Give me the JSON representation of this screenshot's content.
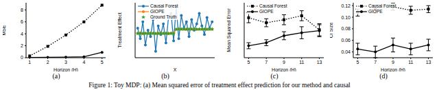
{
  "caption": "Figure 1: Toy MDP: (a) Mean squared error of treatment effect prediction for our method and causal",
  "chart_data": [
    {
      "type": "line",
      "title": "(a)",
      "x_label": "Horizon (H)",
      "y_label": "MSE",
      "x": [
        1,
        2,
        3,
        4,
        5
      ],
      "xlim": [
        0.8,
        5.2
      ],
      "xticks": [
        1,
        2,
        3,
        4,
        5
      ],
      "ylim": [
        0,
        9.2
      ],
      "yticks": [
        0,
        2,
        4,
        6,
        8
      ],
      "series": [
        {
          "name": "Causal Forest",
          "color": "#000000",
          "marker": "square",
          "line_style": "dotted",
          "values": [
            0.3,
            1.9,
            3.8,
            6.0,
            8.8
          ]
        },
        {
          "name": "GIOPE",
          "color": "#000000",
          "marker": "circle",
          "line_style": "solid",
          "values": [
            0.05,
            0.07,
            0.1,
            0.15,
            0.9
          ]
        }
      ]
    },
    {
      "type": "line",
      "title": "(b)",
      "x_label": "X",
      "y_label": "Treatment Effect",
      "tick_labels": false,
      "legend": "upper left",
      "x": [
        0,
        1,
        2,
        3,
        4,
        5,
        6,
        7,
        8,
        9,
        10,
        11,
        12,
        13,
        14,
        15,
        16,
        17,
        18,
        19,
        20,
        21,
        22,
        23,
        24,
        25,
        26,
        27,
        28,
        29
      ],
      "xlim": [
        -1,
        30
      ],
      "ylim": [
        -1.2,
        1.4
      ],
      "series": [
        {
          "name": "Causal Forest",
          "color": "#1f77b4",
          "marker": "circle",
          "line_style": "solid",
          "values": [
            0.2,
            -0.3,
            0.5,
            -0.6,
            0.1,
            -0.2,
            0.6,
            -0.9,
            0.3,
            -0.1,
            0.4,
            -0.5,
            0.7,
            0.9,
            -0.4,
            1.2,
            -0.3,
            0.8,
            0.2,
            0.5,
            -0.2,
            0.6,
            0.1,
            0.4,
            0.9,
            0.3,
            -0.1,
            0.7,
            0.2,
            0.5
          ]
        },
        {
          "name": "GIOPE",
          "color": "#ff7f0e",
          "marker": "circle",
          "line_style": "solid",
          "values": [
            -0.05,
            -0.04,
            -0.06,
            -0.05,
            -0.05,
            -0.04,
            -0.05,
            -0.06,
            -0.05,
            -0.04,
            -0.05,
            -0.05,
            -0.06,
            -0.04,
            -0.05,
            0.14,
            0.15,
            0.16,
            0.15,
            0.14,
            0.15,
            0.16,
            0.15,
            0.14,
            0.15,
            0.15,
            0.16,
            0.14,
            0.15,
            0.15
          ]
        },
        {
          "name": "Ground Truth",
          "color": "#2ca02c",
          "marker": "star",
          "line_style": "none",
          "values": [
            -0.05,
            -0.05,
            -0.05,
            -0.05,
            -0.05,
            -0.05,
            -0.05,
            -0.05,
            -0.05,
            -0.05,
            -0.05,
            -0.05,
            -0.05,
            -0.05,
            -0.05,
            0.15,
            0.15,
            0.15,
            0.15,
            0.15,
            0.15,
            0.15,
            0.15,
            0.15,
            0.15,
            0.15,
            0.15,
            0.15,
            0.15,
            0.15
          ]
        }
      ]
    },
    {
      "type": "line",
      "title": "(c)",
      "x_label": "Horizon (H)",
      "y_label": "Mean Squared Error",
      "tick_labels": "x",
      "legend": "upper left",
      "x": [
        5,
        7,
        9,
        11,
        13
      ],
      "xlim": [
        4.5,
        13.5
      ],
      "xticks": [
        5,
        7,
        9,
        11,
        13
      ],
      "ylim": [
        0.02,
        0.075
      ],
      "series": [
        {
          "name": "Causal Forest",
          "color": "#000000",
          "marker": "square",
          "line_style": "dotted",
          "values": [
            0.06,
            0.055,
            0.058,
            0.062,
            0.048
          ],
          "errors": [
            0.005,
            0.004,
            0.005,
            0.005,
            0.006
          ]
        },
        {
          "name": "GIOPE",
          "color": "#000000",
          "marker": "circle",
          "line_style": "solid",
          "values": [
            0.032,
            0.035,
            0.042,
            0.045,
            0.047
          ],
          "errors": [
            0.003,
            0.003,
            0.004,
            0.006,
            0.006
          ]
        }
      ]
    },
    {
      "type": "line",
      "title": "(d)",
      "x_label": "Horizon (H)",
      "y_label": "CI Size",
      "legend": "upper left",
      "x": [
        5,
        7,
        9,
        11,
        13
      ],
      "xlim": [
        4.5,
        13.5
      ],
      "xticks": [
        5,
        7,
        9,
        11,
        13
      ],
      "ylim": [
        0.03,
        0.125
      ],
      "yticks": [
        0.04,
        0.06,
        0.08,
        {
          "value": 0.1,
          "label": "0.10"
        },
        0.12
      ],
      "series": [
        {
          "name": "Causal Forest",
          "color": "#000000",
          "marker": "square",
          "line_style": "dotted",
          "values": [
            0.108,
            0.114,
            0.118,
            0.112,
            0.114
          ],
          "errors": [
            0.006,
            0.007,
            0.006,
            0.007,
            0.006
          ]
        },
        {
          "name": "GIOPE",
          "color": "#000000",
          "marker": "circle",
          "line_style": "solid",
          "values": [
            0.045,
            0.04,
            0.052,
            0.045,
            0.052
          ],
          "errors": [
            0.01,
            0.01,
            0.012,
            0.01,
            0.01
          ]
        }
      ]
    }
  ]
}
